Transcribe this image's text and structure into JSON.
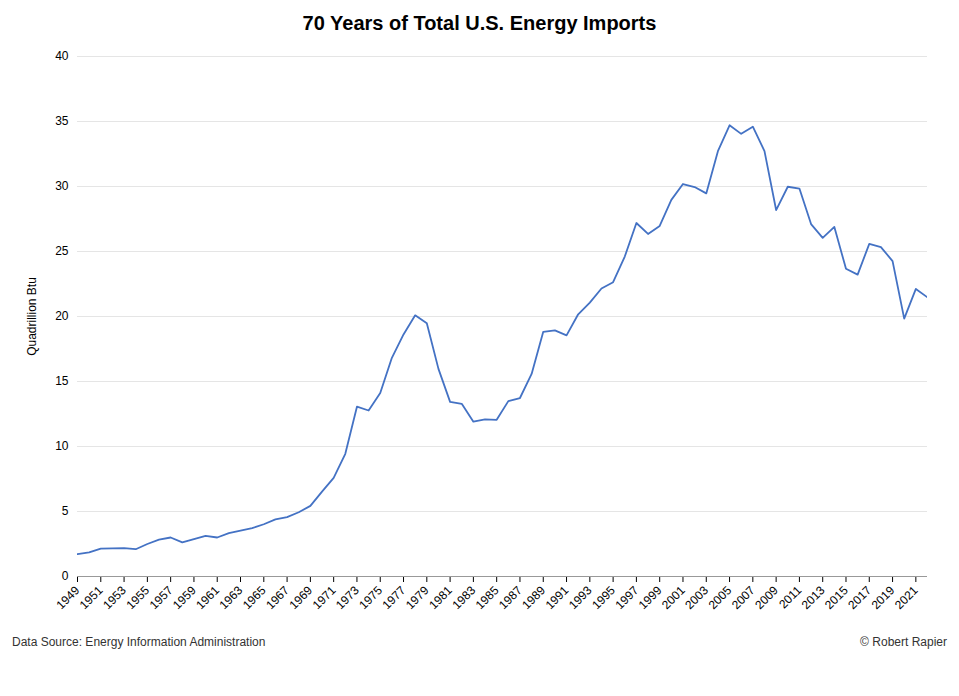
{
  "chart_data": {
    "type": "line",
    "title": "70 Years of Total U.S. Energy Imports",
    "ylabel": "Quadrillion Btu",
    "annotations": [
      "Data Source: Energy Information Administration",
      "© Robert Rapier"
    ],
    "x": [
      1949,
      1950,
      1951,
      1952,
      1953,
      1954,
      1955,
      1956,
      1957,
      1958,
      1959,
      1960,
      1961,
      1962,
      1963,
      1964,
      1965,
      1966,
      1967,
      1968,
      1969,
      1970,
      1971,
      1972,
      1973,
      1974,
      1975,
      1976,
      1977,
      1978,
      1979,
      1980,
      1981,
      1982,
      1983,
      1984,
      1985,
      1986,
      1987,
      1988,
      1989,
      1990,
      1991,
      1992,
      1993,
      1994,
      1995,
      1996,
      1997,
      1998,
      1999,
      2000,
      2001,
      2002,
      2003,
      2004,
      2005,
      2006,
      2007,
      2008,
      2009,
      2010,
      2011,
      2012,
      2013,
      2014,
      2015,
      2016,
      2017,
      2018,
      2019,
      2020,
      2021,
      2022
    ],
    "values": [
      1.72,
      1.85,
      2.15,
      2.16,
      2.18,
      2.1,
      2.5,
      2.83,
      3.0,
      2.62,
      2.87,
      3.13,
      3.0,
      3.33,
      3.52,
      3.72,
      4.02,
      4.39,
      4.57,
      4.94,
      5.43,
      6.53,
      7.59,
      9.44,
      13.06,
      12.77,
      14.11,
      16.82,
      18.62,
      20.09,
      19.48,
      15.97,
      13.43,
      13.28,
      11.91,
      12.09,
      12.05,
      13.49,
      13.73,
      15.58,
      18.82,
      18.93,
      18.55,
      20.17,
      21.07,
      22.15,
      22.64,
      24.61,
      27.19,
      26.35,
      26.97,
      28.97,
      30.19,
      29.96,
      29.47,
      32.72,
      34.71,
      34.05,
      34.6,
      32.72,
      28.19,
      29.98,
      29.84,
      27.11,
      26.05,
      26.89,
      23.67,
      23.22,
      25.59,
      25.34,
      24.26,
      19.84,
      22.12,
      21.47
    ],
    "color": "#4472C4",
    "xlim": [
      1949,
      2022
    ],
    "xticks": [
      1949,
      1951,
      1953,
      1955,
      1957,
      1959,
      1961,
      1963,
      1965,
      1967,
      1969,
      1971,
      1973,
      1975,
      1977,
      1979,
      1981,
      1983,
      1985,
      1987,
      1989,
      1991,
      1993,
      1995,
      1997,
      1999,
      2001,
      2003,
      2005,
      2007,
      2009,
      2011,
      2013,
      2015,
      2017,
      2019,
      2021
    ],
    "ylim": [
      0,
      40
    ],
    "yticks": [
      0,
      5,
      10,
      15,
      20,
      25,
      30,
      35,
      40
    ],
    "grid": true
  }
}
